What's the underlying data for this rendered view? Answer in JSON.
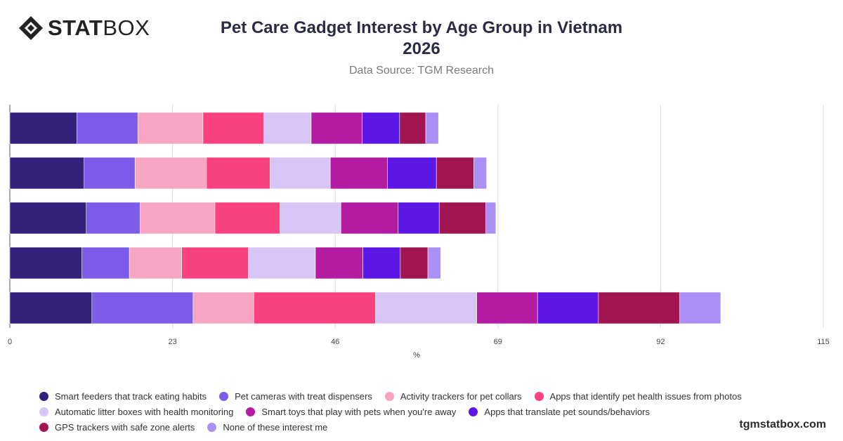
{
  "header": {
    "logo_text_bold": "STAT",
    "logo_text_light": "BOX",
    "title_line1": "Pet Care Gadget Interest by Age Group in Vietnam",
    "title_line2": "2026",
    "subtitle": "Data Source: TGM Research"
  },
  "footer": {
    "site": "tgmstatbox.com"
  },
  "chart_data": {
    "type": "bar",
    "orientation": "horizontal",
    "stacked": true,
    "xlabel": "%",
    "xlim": [
      0,
      115
    ],
    "xticks": [
      0,
      23,
      46,
      69,
      92,
      115
    ],
    "grid": true,
    "legend_position": "bottom",
    "categories": [
      "",
      "",
      "",
      "",
      ""
    ],
    "series": [
      {
        "name": "Smart feeders that track eating habits",
        "color": "#33207a",
        "values": [
          9.5,
          10.5,
          10.8,
          10.2,
          11.6
        ]
      },
      {
        "name": "Pet cameras with treat dispensers",
        "color": "#7c5ce8",
        "values": [
          8.6,
          7.2,
          7.6,
          6.7,
          14.3
        ]
      },
      {
        "name": "Activity trackers for pet collars",
        "color": "#f8a5c3",
        "values": [
          9.2,
          10.1,
          10.6,
          7.4,
          8.6
        ]
      },
      {
        "name": "Apps that identify pet health issues from photos",
        "color": "#fa4180",
        "values": [
          8.6,
          9.0,
          9.2,
          9.4,
          17.2
        ]
      },
      {
        "name": "Automatic litter boxes with health monitoring",
        "color": "#d7c5f6",
        "values": [
          6.7,
          8.5,
          8.6,
          9.5,
          14.3
        ]
      },
      {
        "name": "Smart toys that play with pets when you're away",
        "color": "#b31ca0",
        "values": [
          7.2,
          8.1,
          8.1,
          6.7,
          8.6
        ]
      },
      {
        "name": "Apps that translate pet sounds/behaviors",
        "color": "#5c16e6",
        "values": [
          5.3,
          6.9,
          5.8,
          5.3,
          8.6
        ]
      },
      {
        "name": "GPS trackers with safe zone alerts",
        "color": "#a11551",
        "values": [
          3.7,
          5.3,
          6.6,
          3.9,
          11.5
        ]
      },
      {
        "name": "None of these interest me",
        "color": "#aa8ff5",
        "values": [
          1.8,
          1.8,
          1.4,
          1.8,
          5.8
        ]
      }
    ]
  }
}
